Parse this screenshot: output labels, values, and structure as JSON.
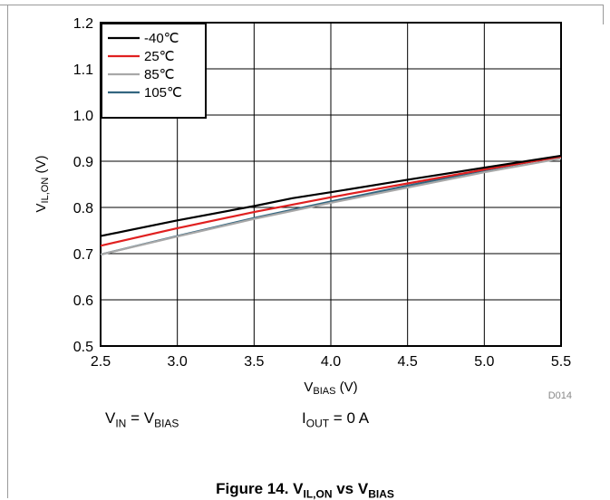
{
  "chart_data": {
    "type": "line",
    "xlabel_main": "V",
    "xlabel_sub": "BIAS",
    "xlabel_unit": " (V)",
    "ylabel_main": "V",
    "ylabel_sub": "IL,ON",
    "ylabel_unit": " (V)",
    "xlim": [
      2.5,
      5.5
    ],
    "ylim": [
      0.5,
      1.2
    ],
    "xticks": [
      "2.5",
      "3.0",
      "3.5",
      "4.0",
      "4.5",
      "5.0",
      "5.5"
    ],
    "yticks": [
      "0.5",
      "0.6",
      "0.7",
      "0.8",
      "0.9",
      "1.0",
      "1.1",
      "1.2"
    ],
    "grid": true,
    "legend_position": "top-left",
    "figure_id": "D014",
    "series": [
      {
        "name": "-40℃",
        "color": "#000000",
        "x": [
          2.5,
          3.0,
          3.5,
          3.75,
          4.0,
          4.5,
          5.0,
          5.5
        ],
        "y": [
          0.738,
          0.772,
          0.803,
          0.82,
          0.833,
          0.86,
          0.886,
          0.912
        ]
      },
      {
        "name": "25℃",
        "color": "#e02020",
        "x": [
          2.5,
          3.0,
          3.5,
          4.0,
          4.5,
          5.0,
          5.5
        ],
        "y": [
          0.717,
          0.755,
          0.79,
          0.822,
          0.852,
          0.882,
          0.91
        ]
      },
      {
        "name": "85℃",
        "color": "#a8a8a8",
        "x": [
          2.5,
          3.0,
          3.5,
          4.0,
          4.5,
          5.0,
          5.5
        ],
        "y": [
          0.698,
          0.737,
          0.775,
          0.81,
          0.843,
          0.876,
          0.906
        ]
      },
      {
        "name": "105℃",
        "color": "#336680",
        "x": [
          2.5,
          3.0,
          3.5,
          4.0,
          4.5,
          5.0,
          5.5
        ],
        "y": [
          0.698,
          0.738,
          0.777,
          0.813,
          0.847,
          0.88,
          0.911
        ]
      }
    ]
  },
  "conditions": {
    "vin_main": "V",
    "vin_sub": "IN",
    "vin_eq": " = V",
    "vin_rhs_sub": "BIAS",
    "iout_main": "I",
    "iout_sub": "OUT",
    "iout_rest": " = 0 A"
  },
  "caption": {
    "prefix": "Figure 14. V",
    "sub1": "IL,ON",
    "mid": " vs V",
    "sub2": "BIAS"
  }
}
